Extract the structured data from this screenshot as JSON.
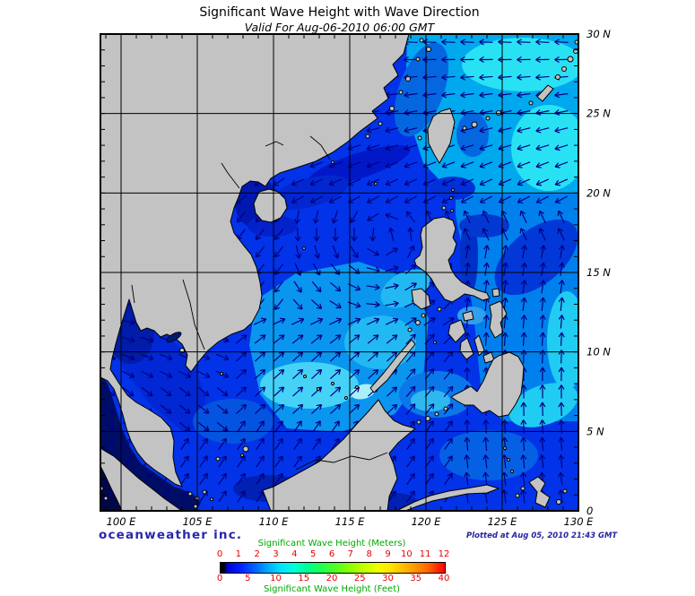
{
  "header": {
    "title": "Significant Wave Height with Wave Direction",
    "subtitle": "Valid For Aug-06-2010 06:00 GMT"
  },
  "map": {
    "lat_labels": [
      "30 N",
      "25 N",
      "20 N",
      "15 N",
      "10 N",
      "5 N",
      "0"
    ],
    "lat_values": [
      30,
      25,
      20,
      15,
      10,
      5,
      0
    ],
    "lon_labels": [
      "100 E",
      "105 E",
      "110 E",
      "115 E",
      "120 E",
      "125 E",
      "130 E"
    ],
    "lon_values": [
      100,
      105,
      110,
      115,
      120,
      125,
      130
    ],
    "region": "South China Sea and Western Pacific",
    "wave_direction_summary": "Counterclockwise monsoon gyre: westward flow north of 20N and east of Taiwan, southwestward along the Vietnam coast, east-to-northeastward over the southern South China Sea and Gulf of Thailand, northward east of the Philippines"
  },
  "credits": {
    "source": "oceanweather inc.",
    "plotted": "Plotted at Aug 05, 2010 21:43 GMT"
  },
  "legend": {
    "meters_title": "Significant Wave Height (Meters)",
    "feet_title": "Significant Wave Height (Feet)",
    "meters_ticks": [
      "0",
      "1",
      "2",
      "3",
      "4",
      "5",
      "6",
      "7",
      "8",
      "9",
      "10",
      "11",
      "12"
    ],
    "feet_ticks": [
      "0",
      "5",
      "10",
      "15",
      "20",
      "25",
      "30",
      "35",
      "40"
    ]
  },
  "colors": {
    "land": "#c3c3c3",
    "coastline": "#000000",
    "grid": "#000000",
    "ocean_base": "#0233e8",
    "ocean_calm_dark": "#000d66",
    "ocean_rough_cyan": "#45d2f6",
    "arrow": "#000080",
    "legend_title": "#00a800",
    "legend_tick": "#e80000",
    "credit": "#2828a8"
  }
}
